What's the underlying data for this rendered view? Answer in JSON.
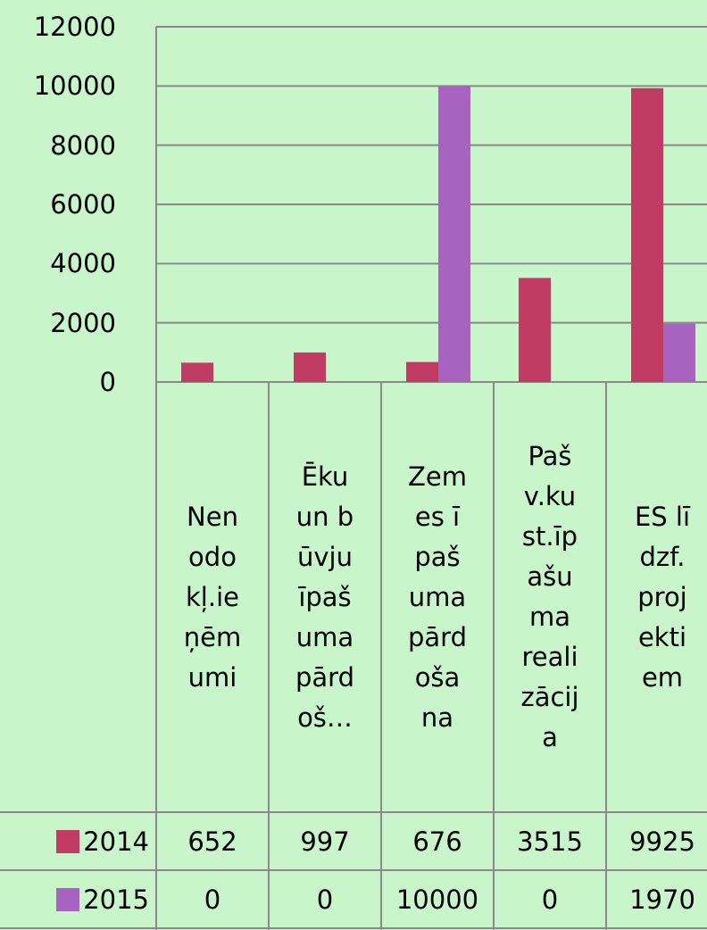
{
  "chart_data": {
    "type": "bar",
    "categories": [
      "Nenodokļ.ieņēmumi",
      "Ēku un būvju īpašuma pārdoš…",
      "Zemes īpašuma pārdošana",
      "Pašv.kust.īpašuma realizācija",
      "ES līdzf.projektiem"
    ],
    "series": [
      {
        "name": "2014",
        "color": "#c03c62",
        "values": [
          652,
          997,
          676,
          3515,
          9925
        ]
      },
      {
        "name": "2015",
        "color": "#a862c0",
        "values": [
          0,
          0,
          10000,
          0,
          1970
        ]
      }
    ],
    "ylim": [
      0,
      12000
    ],
    "yticks": [
      0,
      2000,
      4000,
      6000,
      8000,
      10000,
      12000
    ],
    "grid": true
  }
}
